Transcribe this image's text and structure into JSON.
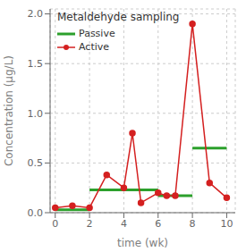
{
  "chart_data": {
    "type": "line",
    "title": "Metaldehyde sampling",
    "x_label": "time (wk)",
    "y_label": "Concentration (μg/L)",
    "series": [
      {
        "name": "Passive",
        "type": "segment",
        "color": "#2ca02c",
        "x_start": [
          0,
          2,
          6,
          8
        ],
        "x_end": [
          2,
          6,
          8,
          10
        ],
        "values": [
          0.03,
          0.23,
          0.17,
          0.65
        ]
      },
      {
        "name": "Active",
        "type": "line",
        "color": "#d42020",
        "marker": "circle",
        "x": [
          0,
          1,
          2,
          3,
          4,
          4.5,
          5,
          6,
          6.5,
          7,
          8,
          9,
          10
        ],
        "values": [
          0.05,
          0.07,
          0.05,
          0.38,
          0.25,
          0.8,
          0.1,
          0.2,
          0.17,
          0.17,
          1.9,
          0.3,
          0.15
        ]
      }
    ],
    "xlim": [
      -0.3,
      10.5
    ],
    "xticks": [
      0,
      2,
      4,
      6,
      8,
      10
    ],
    "ylim": [
      0,
      2.05
    ],
    "yticks": [
      {
        "value": 0,
        "label": "0.0"
      },
      0.5,
      {
        "value": 1,
        "label": "1.0"
      },
      1.5,
      {
        "value": 2,
        "label": "2.0"
      }
    ],
    "grid": true,
    "legend": "upper left"
  }
}
